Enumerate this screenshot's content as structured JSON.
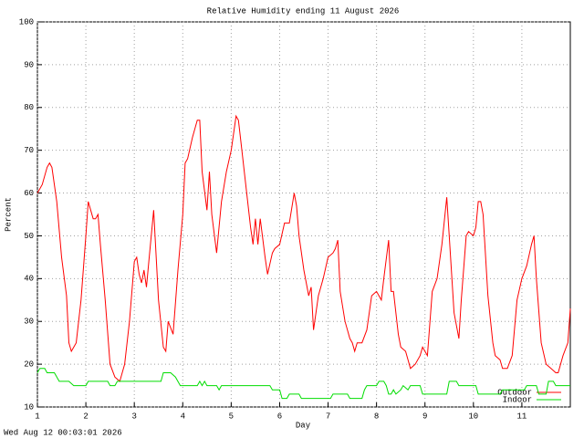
{
  "chart_data": {
    "type": "line",
    "title": "Relative Humidity ending 11 August 2026",
    "xlabel": "Day",
    "ylabel": "Percent",
    "footer": "Wed Aug 12 00:03:01 2026",
    "xlim": [
      1,
      12
    ],
    "ylim": [
      10,
      100
    ],
    "xticks": [
      1,
      2,
      3,
      4,
      5,
      6,
      7,
      8,
      9,
      10,
      11
    ],
    "yticks": [
      10,
      20,
      30,
      40,
      50,
      60,
      70,
      80,
      90,
      100
    ],
    "grid": true,
    "legend": "bottom-right",
    "series": [
      {
        "name": "Outdoor",
        "color": "#ff0000",
        "x": [
          1.0,
          1.1,
          1.2,
          1.25,
          1.3,
          1.4,
          1.5,
          1.6,
          1.65,
          1.7,
          1.8,
          1.9,
          2.0,
          2.05,
          2.1,
          2.15,
          2.2,
          2.25,
          2.3,
          2.4,
          2.5,
          2.6,
          2.7,
          2.8,
          2.9,
          3.0,
          3.05,
          3.1,
          3.15,
          3.2,
          3.25,
          3.3,
          3.4,
          3.5,
          3.6,
          3.65,
          3.7,
          3.8,
          3.9,
          4.0,
          4.05,
          4.1,
          4.2,
          4.3,
          4.35,
          4.4,
          4.5,
          4.55,
          4.6,
          4.7,
          4.8,
          4.9,
          5.0,
          5.1,
          5.15,
          5.2,
          5.3,
          5.4,
          5.45,
          5.5,
          5.55,
          5.6,
          5.7,
          5.75,
          5.85,
          5.9,
          6.0,
          6.1,
          6.2,
          6.3,
          6.35,
          6.4,
          6.5,
          6.6,
          6.65,
          6.7,
          6.8,
          6.9,
          7.0,
          7.1,
          7.15,
          7.2,
          7.25,
          7.35,
          7.45,
          7.5,
          7.55,
          7.6,
          7.7,
          7.8,
          7.9,
          8.0,
          8.1,
          8.15,
          8.25,
          8.3,
          8.35,
          8.45,
          8.5,
          8.6,
          8.7,
          8.8,
          8.9,
          8.95,
          9.0,
          9.05,
          9.15,
          9.25,
          9.35,
          9.45,
          9.5,
          9.6,
          9.7,
          9.75,
          9.85,
          9.9,
          10.0,
          10.05,
          10.1,
          10.15,
          10.2,
          10.3,
          10.4,
          10.45,
          10.55,
          10.6,
          10.7,
          10.8,
          10.9,
          11.0,
          11.1,
          11.2,
          11.25,
          11.3,
          11.4,
          11.5,
          11.6,
          11.7,
          11.75,
          11.85,
          11.95,
          12.0
        ],
        "values": [
          60,
          62,
          66,
          67,
          66,
          58,
          45,
          36,
          25,
          23,
          25,
          35,
          50,
          58,
          56,
          54,
          54,
          55,
          48,
          35,
          20,
          17,
          16,
          20,
          30,
          44,
          45,
          41,
          39,
          42,
          38,
          44,
          56,
          35,
          24,
          23,
          30,
          27,
          42,
          55,
          67,
          68,
          73,
          77,
          77,
          65,
          56,
          65,
          55,
          46,
          58,
          65,
          70,
          78,
          77,
          72,
          62,
          52,
          48,
          54,
          48,
          54,
          45,
          41,
          46,
          47,
          48,
          53,
          53,
          60,
          57,
          50,
          42,
          36,
          38,
          28,
          36,
          40,
          45,
          46,
          47,
          49,
          37,
          30,
          26,
          25,
          23,
          25,
          25,
          28,
          36,
          37,
          35,
          40,
          49,
          37,
          37,
          27,
          24,
          23,
          19,
          20,
          22,
          24,
          23,
          22,
          37,
          40,
          48,
          59,
          50,
          32,
          26,
          35,
          50,
          51,
          50,
          52,
          58,
          58,
          55,
          36,
          25,
          22,
          21,
          19,
          19,
          22,
          35,
          40,
          43,
          48,
          50,
          40,
          25,
          20,
          19,
          18,
          18,
          22,
          25,
          33
        ]
      },
      {
        "name": "Indoor",
        "color": "#00dd00",
        "x": [
          1.0,
          1.05,
          1.15,
          1.2,
          1.35,
          1.45,
          1.65,
          1.75,
          2.0,
          2.05,
          2.45,
          2.5,
          2.6,
          2.65,
          3.55,
          3.6,
          3.75,
          3.85,
          3.95,
          4.3,
          4.35,
          4.4,
          4.45,
          4.5,
          4.7,
          4.75,
          4.8,
          5.8,
          5.85,
          6.0,
          6.05,
          6.15,
          6.2,
          6.4,
          6.45,
          7.05,
          7.1,
          7.4,
          7.45,
          7.7,
          7.75,
          7.8,
          8.0,
          8.05,
          8.15,
          8.2,
          8.25,
          8.3,
          8.35,
          8.4,
          8.5,
          8.55,
          8.65,
          8.7,
          8.9,
          8.95,
          9.45,
          9.5,
          9.65,
          9.7,
          10.05,
          10.1,
          10.55,
          10.6,
          11.05,
          11.1,
          11.3,
          11.35,
          11.5,
          11.55,
          11.65,
          11.7,
          12.0
        ],
        "values": [
          18,
          19,
          19,
          18,
          18,
          16,
          16,
          15,
          15,
          16,
          16,
          15,
          15,
          16,
          16,
          18,
          18,
          17,
          15,
          15,
          16,
          15,
          16,
          15,
          15,
          14,
          15,
          15,
          14,
          14,
          12,
          12,
          13,
          13,
          12,
          12,
          13,
          13,
          12,
          12,
          14,
          15,
          15,
          16,
          16,
          15,
          13,
          13,
          14,
          13,
          14,
          15,
          14,
          15,
          15,
          13,
          13,
          16,
          16,
          15,
          15,
          13,
          13,
          14,
          14,
          15,
          15,
          13,
          13,
          16,
          16,
          15,
          15
        ]
      }
    ]
  }
}
